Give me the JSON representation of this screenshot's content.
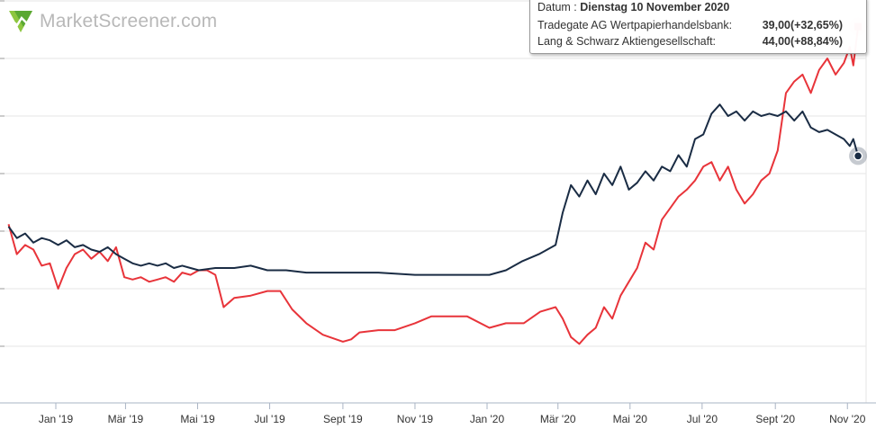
{
  "brand": {
    "name": "MarketScreener.com"
  },
  "tooltip": {
    "date_label": "Datum :",
    "date_value": "Dienstag 10 November 2020",
    "rows": [
      {
        "label": "Tradegate AG Wertpapierhandelsbank:",
        "value": "39,00(+32,65%)"
      },
      {
        "label": "Lang & Schwarz Aktiengesellschaft:",
        "value": "44,00(+88,84%)"
      }
    ]
  },
  "colors": {
    "tradegate": "#1a2c44",
    "lang_schwarz": "#e8343a",
    "grid": "#e6e6e6"
  },
  "chart_data": {
    "type": "line",
    "title": "",
    "xlabel": "",
    "ylabel": "",
    "x_ticks": [
      "Jan '19",
      "Mär '19",
      "Mai '19",
      "Jul '19",
      "Sept '19",
      "Nov '19",
      "Jan '20",
      "Mär '20",
      "Mai '20",
      "Jul '20",
      "Sept '20",
      "Nov '20"
    ],
    "y_range_pct": [
      -80,
      110
    ],
    "y_gridlines_pct": [
      -50,
      -25,
      0,
      25,
      50,
      75,
      100
    ],
    "series": [
      {
        "name": "Tradegate AG Wertpapierhandelsbank",
        "unit": "% change",
        "points": [
          [
            "2018-11-22",
            2
          ],
          [
            "2018-11-29",
            -3
          ],
          [
            "2018-12-06",
            -1
          ],
          [
            "2018-12-13",
            -5
          ],
          [
            "2018-12-20",
            -3
          ],
          [
            "2018-12-27",
            -4
          ],
          [
            "2019-01-03",
            -6
          ],
          [
            "2019-01-10",
            -4
          ],
          [
            "2019-01-17",
            -7
          ],
          [
            "2019-01-24",
            -6
          ],
          [
            "2019-01-31",
            -8
          ],
          [
            "2019-02-07",
            -9
          ],
          [
            "2019-02-14",
            -7
          ],
          [
            "2019-02-21",
            -10
          ],
          [
            "2019-02-28",
            -12
          ],
          [
            "2019-03-07",
            -14
          ],
          [
            "2019-03-14",
            -15
          ],
          [
            "2019-03-21",
            -14
          ],
          [
            "2019-03-28",
            -15
          ],
          [
            "2019-04-04",
            -14
          ],
          [
            "2019-04-11",
            -16
          ],
          [
            "2019-04-18",
            -15
          ],
          [
            "2019-04-25",
            -16
          ],
          [
            "2019-05-02",
            -17
          ],
          [
            "2019-05-16",
            -16
          ],
          [
            "2019-06-01",
            -16
          ],
          [
            "2019-06-15",
            -15
          ],
          [
            "2019-06-29",
            -17
          ],
          [
            "2019-07-15",
            -17
          ],
          [
            "2019-08-01",
            -18
          ],
          [
            "2019-09-01",
            -18
          ],
          [
            "2019-10-01",
            -18
          ],
          [
            "2019-11-01",
            -19
          ],
          [
            "2019-12-01",
            -19
          ],
          [
            "2019-12-20",
            -19
          ],
          [
            "2020-01-03",
            -19
          ],
          [
            "2020-01-17",
            -17
          ],
          [
            "2020-01-31",
            -13
          ],
          [
            "2020-02-14",
            -10
          ],
          [
            "2020-02-28",
            -6
          ],
          [
            "2020-03-05",
            8
          ],
          [
            "2020-03-12",
            20
          ],
          [
            "2020-03-19",
            15
          ],
          [
            "2020-03-26",
            22
          ],
          [
            "2020-04-02",
            16
          ],
          [
            "2020-04-09",
            25
          ],
          [
            "2020-04-16",
            20
          ],
          [
            "2020-04-23",
            28
          ],
          [
            "2020-04-30",
            18
          ],
          [
            "2020-05-07",
            21
          ],
          [
            "2020-05-14",
            26
          ],
          [
            "2020-05-21",
            22
          ],
          [
            "2020-05-28",
            28
          ],
          [
            "2020-06-04",
            26
          ],
          [
            "2020-06-11",
            33
          ],
          [
            "2020-06-18",
            28
          ],
          [
            "2020-06-25",
            40
          ],
          [
            "2020-07-02",
            42
          ],
          [
            "2020-07-09",
            51
          ],
          [
            "2020-07-16",
            55
          ],
          [
            "2020-07-23",
            50
          ],
          [
            "2020-07-30",
            52
          ],
          [
            "2020-08-06",
            48
          ],
          [
            "2020-08-13",
            52
          ],
          [
            "2020-08-20",
            50
          ],
          [
            "2020-08-27",
            51
          ],
          [
            "2020-09-03",
            50
          ],
          [
            "2020-09-10",
            52
          ],
          [
            "2020-09-17",
            48
          ],
          [
            "2020-09-24",
            52
          ],
          [
            "2020-10-01",
            45
          ],
          [
            "2020-10-08",
            43
          ],
          [
            "2020-10-15",
            44
          ],
          [
            "2020-10-22",
            42
          ],
          [
            "2020-10-29",
            40
          ],
          [
            "2020-11-03",
            37
          ],
          [
            "2020-11-06",
            40
          ],
          [
            "2020-11-10",
            32.65
          ]
        ]
      },
      {
        "name": "Lang & Schwarz Aktiengesellschaft",
        "unit": "% change",
        "points": [
          [
            "2018-11-22",
            3
          ],
          [
            "2018-11-29",
            -10
          ],
          [
            "2018-12-06",
            -6
          ],
          [
            "2018-12-13",
            -8
          ],
          [
            "2018-12-20",
            -15
          ],
          [
            "2018-12-27",
            -14
          ],
          [
            "2019-01-03",
            -25
          ],
          [
            "2019-01-10",
            -16
          ],
          [
            "2019-01-17",
            -10
          ],
          [
            "2019-01-24",
            -8
          ],
          [
            "2019-01-31",
            -12
          ],
          [
            "2019-02-07",
            -9
          ],
          [
            "2019-02-14",
            -13
          ],
          [
            "2019-02-21",
            -7
          ],
          [
            "2019-02-28",
            -20
          ],
          [
            "2019-03-07",
            -21
          ],
          [
            "2019-03-14",
            -20
          ],
          [
            "2019-03-21",
            -22
          ],
          [
            "2019-03-28",
            -21
          ],
          [
            "2019-04-04",
            -20
          ],
          [
            "2019-04-11",
            -22
          ],
          [
            "2019-04-18",
            -18
          ],
          [
            "2019-04-25",
            -19
          ],
          [
            "2019-05-02",
            -17
          ],
          [
            "2019-05-09",
            -17
          ],
          [
            "2019-05-16",
            -19
          ],
          [
            "2019-05-23",
            -33
          ],
          [
            "2019-06-01",
            -29
          ],
          [
            "2019-06-15",
            -28
          ],
          [
            "2019-06-29",
            -26
          ],
          [
            "2019-07-10",
            -26
          ],
          [
            "2019-07-20",
            -34
          ],
          [
            "2019-08-01",
            -40
          ],
          [
            "2019-08-15",
            -45
          ],
          [
            "2019-09-01",
            -48
          ],
          [
            "2019-09-08",
            -47
          ],
          [
            "2019-09-15",
            -44
          ],
          [
            "2019-10-01",
            -43
          ],
          [
            "2019-10-15",
            -43
          ],
          [
            "2019-11-01",
            -40
          ],
          [
            "2019-11-15",
            -37
          ],
          [
            "2019-12-01",
            -37
          ],
          [
            "2019-12-15",
            -37
          ],
          [
            "2020-01-03",
            -42
          ],
          [
            "2020-01-17",
            -40
          ],
          [
            "2020-02-01",
            -40
          ],
          [
            "2020-02-15",
            -35
          ],
          [
            "2020-02-28",
            -33
          ],
          [
            "2020-03-05",
            -38
          ],
          [
            "2020-03-12",
            -46
          ],
          [
            "2020-03-19",
            -49
          ],
          [
            "2020-03-26",
            -45
          ],
          [
            "2020-04-02",
            -42
          ],
          [
            "2020-04-09",
            -33
          ],
          [
            "2020-04-16",
            -38
          ],
          [
            "2020-04-23",
            -28
          ],
          [
            "2020-04-30",
            -22
          ],
          [
            "2020-05-07",
            -16
          ],
          [
            "2020-05-14",
            -5
          ],
          [
            "2020-05-21",
            -8
          ],
          [
            "2020-05-28",
            5
          ],
          [
            "2020-06-04",
            10
          ],
          [
            "2020-06-11",
            15
          ],
          [
            "2020-06-18",
            18
          ],
          [
            "2020-06-25",
            22
          ],
          [
            "2020-07-02",
            28
          ],
          [
            "2020-07-09",
            30
          ],
          [
            "2020-07-16",
            22
          ],
          [
            "2020-07-23",
            28
          ],
          [
            "2020-07-30",
            18
          ],
          [
            "2020-08-06",
            12
          ],
          [
            "2020-08-13",
            16
          ],
          [
            "2020-08-20",
            22
          ],
          [
            "2020-08-27",
            25
          ],
          [
            "2020-09-03",
            35
          ],
          [
            "2020-09-10",
            60
          ],
          [
            "2020-09-17",
            65
          ],
          [
            "2020-09-24",
            68
          ],
          [
            "2020-10-01",
            60
          ],
          [
            "2020-10-08",
            70
          ],
          [
            "2020-10-15",
            75
          ],
          [
            "2020-10-22",
            68
          ],
          [
            "2020-10-29",
            73
          ],
          [
            "2020-11-03",
            80
          ],
          [
            "2020-11-06",
            72
          ],
          [
            "2020-11-10",
            88.84
          ]
        ]
      }
    ]
  }
}
